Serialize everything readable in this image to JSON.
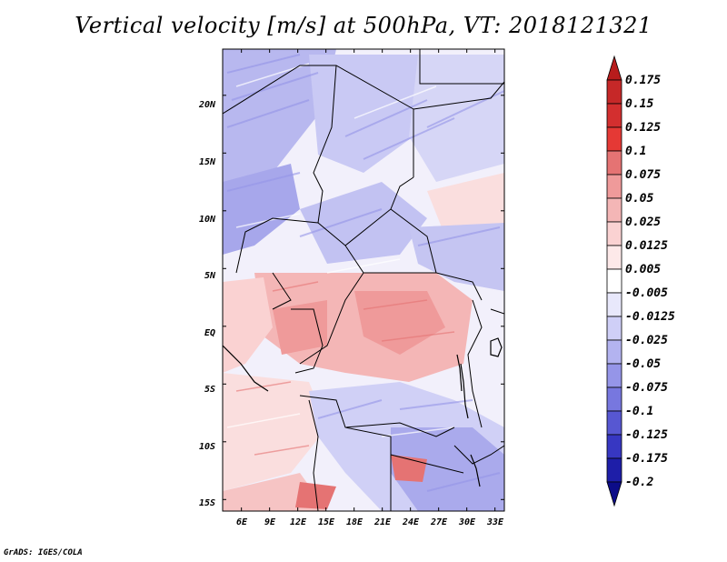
{
  "title": "Vertical velocity [m/s] at 500hPa, VT: 2018121321",
  "credit": "GrADS: IGES/COLA",
  "map": {
    "lat_labels": [
      "20N",
      "15N",
      "10N",
      "5N",
      "EQ",
      "5S",
      "10S",
      "15S"
    ],
    "lon_labels": [
      "6E",
      "9E",
      "12E",
      "15E",
      "18E",
      "21E",
      "24E",
      "27E",
      "30E",
      "33E"
    ],
    "lat_range": [
      -16,
      24
    ],
    "lon_range": [
      4,
      34
    ]
  },
  "colorbar": {
    "labels": [
      "0.175",
      "0.15",
      "0.125",
      "0.1",
      "0.075",
      "0.05",
      "0.025",
      "0.0125",
      "0.005",
      "-0.005",
      "-0.0125",
      "-0.025",
      "-0.05",
      "-0.075",
      "-0.1",
      "-0.125",
      "-0.175",
      "-0.2"
    ],
    "colors": [
      "#b71c1c",
      "#c62828",
      "#d32f2f",
      "#e53935",
      "#e57373",
      "#ef9a9a",
      "#f4b6b6",
      "#fad2d2",
      "#fde9e9",
      "#ffffff",
      "#e8e8fb",
      "#cfcff7",
      "#b3b3f0",
      "#9595e8",
      "#7777df",
      "#5757d2",
      "#3737c2",
      "#1e1ea8",
      "#0c0c88"
    ]
  }
}
